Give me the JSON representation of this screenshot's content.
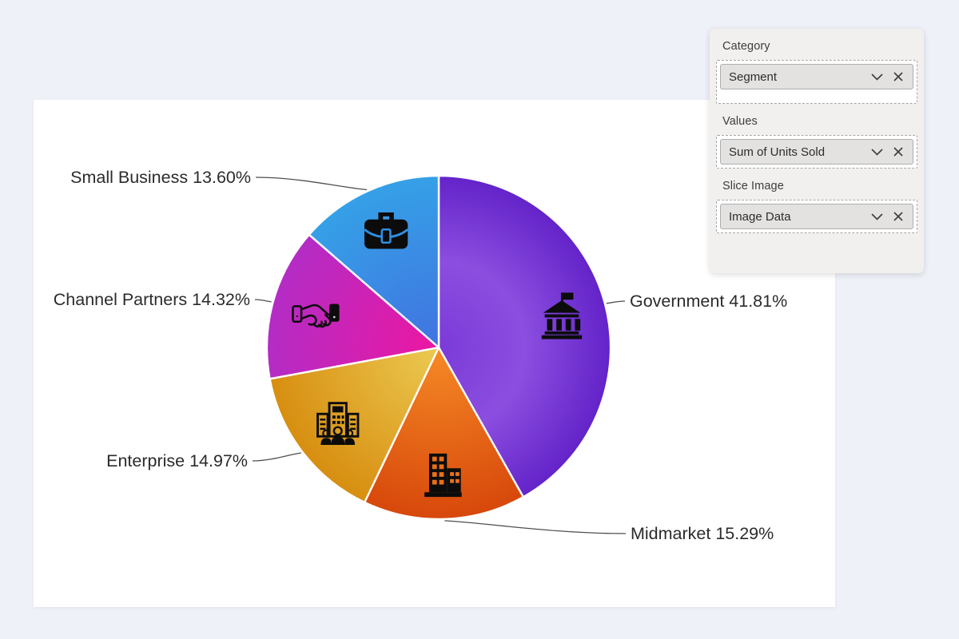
{
  "chart_data": {
    "type": "pie",
    "title": "",
    "categories": [
      "Government",
      "Midmarket",
      "Enterprise",
      "Channel Partners",
      "Small Business"
    ],
    "values": [
      41.81,
      15.29,
      14.97,
      14.32,
      13.6
    ],
    "value_unit": "percent of Sum of Units Sold",
    "start_angle_deg": 0,
    "direction": "clockwise",
    "legend": "none",
    "label_style": "outside callout with leader line",
    "slices": [
      {
        "label": "Government",
        "pct": "41.81%",
        "value": 41.81,
        "icon": "bank-icon",
        "gradient": [
          "#7B3AD8",
          "#8B4EDF",
          "#6323C9"
        ]
      },
      {
        "label": "Midmarket",
        "pct": "15.29%",
        "value": 15.29,
        "icon": "city-buildings-icon",
        "gradient": [
          "#F68A26",
          "#D7480B"
        ]
      },
      {
        "label": "Enterprise",
        "pct": "14.97%",
        "value": 14.97,
        "icon": "office-people-icon",
        "gradient": [
          "#ECCA52",
          "#D78E10"
        ]
      },
      {
        "label": "Channel Partners",
        "pct": "14.32%",
        "value": 14.32,
        "icon": "handshake-icon",
        "gradient": [
          "#EC17A1",
          "#B32CC5"
        ]
      },
      {
        "label": "Small Business",
        "pct": "13.60%",
        "value": 13.6,
        "icon": "briefcase-icon",
        "gradient": [
          "#4173E0",
          "#35A0E7"
        ]
      }
    ],
    "label_color": "#2b2b2b",
    "leader_line_color": "#4f4f4f",
    "slice_separator_color": "#ffffff"
  },
  "field_panel": {
    "sections": [
      {
        "label": "Category",
        "pill": "Segment"
      },
      {
        "label": "Values",
        "pill": "Sum of Units Sold"
      },
      {
        "label": "Slice Image",
        "pill": "Image Data"
      }
    ]
  }
}
